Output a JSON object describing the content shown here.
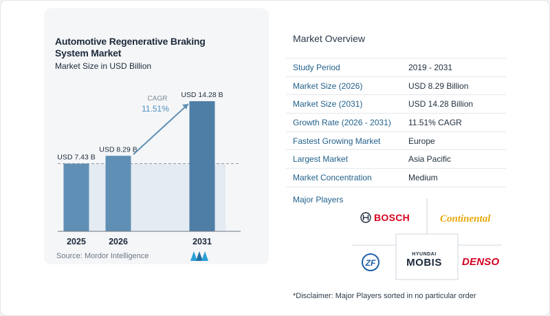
{
  "chart": {
    "title": "Automotive Regenerative Braking System Market",
    "subtitle": "Market Size in USD Billion",
    "source": "Source: Mordor Intelligence",
    "cagr_label": "CAGR",
    "cagr_value": "11.51%"
  },
  "chart_data": {
    "type": "bar",
    "title": "Automotive Regenerative Braking System Market",
    "subtitle": "Market Size in USD Billion",
    "categories": [
      "2025",
      "2026",
      "2031"
    ],
    "values": [
      7.43,
      8.29,
      14.28
    ],
    "value_labels": [
      "USD 7.43 B",
      "USD 8.29 B",
      "USD 14.28 B"
    ],
    "ylim": [
      0,
      15
    ],
    "grid": false,
    "annotations": [
      "CAGR",
      "11.51%"
    ]
  },
  "overview": {
    "title": "Market Overview",
    "rows": [
      {
        "key": "Study Period",
        "value": "2019 - 2031"
      },
      {
        "key": "Market Size (2026)",
        "value": "USD 8.29 Billion"
      },
      {
        "key": "Market Size (2031)",
        "value": "USD 14.28 Billion"
      },
      {
        "key": "Growth Rate (2026 - 2031)",
        "value": "11.51% CAGR"
      },
      {
        "key": "Fastest Growing Market",
        "value": "Europe"
      },
      {
        "key": "Largest Market",
        "value": "Asia Pacific"
      },
      {
        "key": "Market Concentration",
        "value": "Medium"
      }
    ]
  },
  "players": {
    "title": "Major Players",
    "logos": {
      "bosch": "BOSCH",
      "continental": "Continental",
      "zf": "ZF",
      "hyundai_top": "HYUNDAI",
      "hyundai_bottom": "MOBIS",
      "denso": "DENSO"
    },
    "colors": {
      "bosch": "#d6001c",
      "continental": "#e8a90c",
      "zf": "#1d5fa6",
      "mobis": "#1b2a3a",
      "denso": "#d3001f"
    }
  },
  "disclaimer": "*Disclaimer: Major Players sorted in no particular order"
}
